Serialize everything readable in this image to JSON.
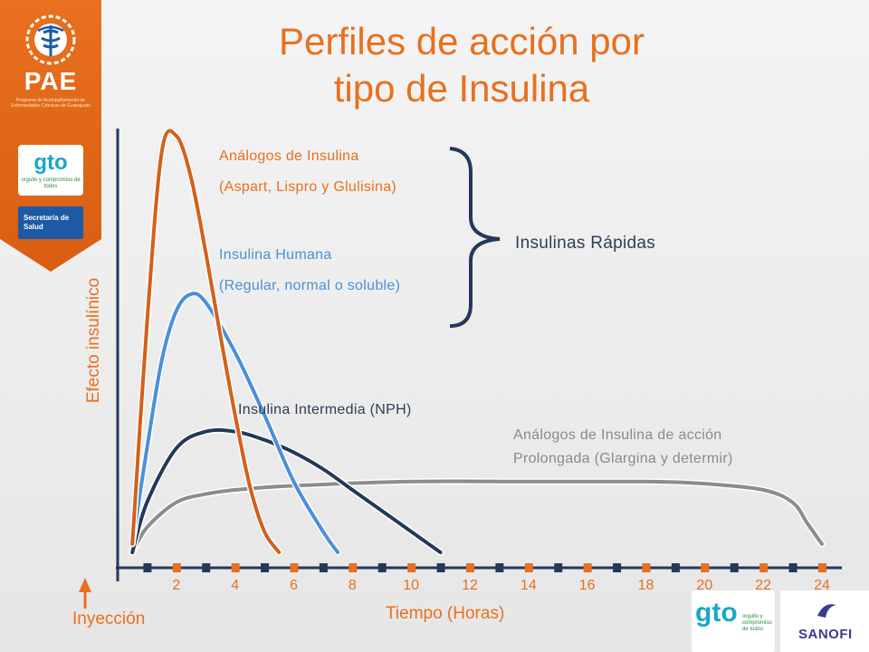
{
  "title": {
    "line1": "Perfiles de acción por",
    "line2": "tipo de Insulina"
  },
  "logos": {
    "pae": "PAE",
    "pae_subtitle": "Programa de Acompañamiento de Enfermedades Crónicas de Guanajuato",
    "gto": "gto",
    "gto_tagline": "orgullo y compromiso de todos",
    "secretaria": "Secretaría de Salud",
    "sanofi": "SANOFI"
  },
  "colors": {
    "accent": "#e8701e",
    "analogos": "#d4601a",
    "humana": "#4a90d9",
    "nph": "#24395a",
    "prolongada": "#8c8c8c",
    "bracket": "#24395a"
  },
  "chart_data": {
    "type": "line",
    "title": "Perfiles de acción por tipo de Insulina",
    "xlabel": "Tiempo (Horas)",
    "ylabel": "Efecto insulínico",
    "xlim": [
      0,
      24
    ],
    "x_ticks": [
      "2",
      "4",
      "6",
      "8",
      "10",
      "12",
      "14",
      "16",
      "18",
      "20",
      "22",
      "24"
    ],
    "y_scale": "qualitative, no ticks",
    "series": [
      {
        "name": "Análogos de Insulina (Aspart, Lispro y Glulisina)",
        "label_lines": [
          "Análogos de Insulina",
          "(Aspart, Lispro y Glulisina)"
        ],
        "color": "#d4601a",
        "x": [
          0.5,
          1,
          1.5,
          2,
          2.5,
          3,
          3.5,
          4,
          4.5,
          5,
          5.5
        ],
        "y": [
          2,
          55,
          96,
          100,
          90,
          72,
          52,
          33,
          16,
          5,
          0
        ]
      },
      {
        "name": "Insulina Humana (Regular, normal o soluble)",
        "label_lines": [
          "Insulina Humana",
          "(Regular, normal o soluble)"
        ],
        "color": "#4a90d9",
        "x": [
          0.5,
          1,
          1.5,
          2,
          2.5,
          3,
          4,
          5,
          6,
          7,
          7.5
        ],
        "y": [
          2,
          25,
          46,
          58,
          62,
          60,
          48,
          33,
          17,
          5,
          0
        ]
      },
      {
        "name": "Insulina Intermedia (NPH)",
        "label_lines": [
          "Insulina Intermedia (NPH)"
        ],
        "color": "#24395a",
        "x": [
          0.5,
          1,
          2,
          3,
          4,
          5,
          6,
          7,
          8,
          9,
          10,
          11
        ],
        "y": [
          0,
          12,
          25,
          29,
          29,
          27,
          24,
          20,
          15,
          10,
          5,
          0
        ]
      },
      {
        "name": "Análogos de Insulina de acción Prolongada (Glargina y determir)",
        "label_lines": [
          "Análogos de Insulina de acción",
          "Prolongada (Glargina y determir)"
        ],
        "color": "#8c8c8c",
        "x": [
          0.5,
          1,
          2,
          3,
          4,
          6,
          10,
          14,
          18,
          20,
          22,
          23,
          23.5,
          24
        ],
        "y": [
          0,
          6,
          12,
          14,
          15,
          16,
          17,
          17,
          17,
          16.5,
          15,
          12,
          7,
          2
        ]
      }
    ],
    "annotations": {
      "bracket_label": "Insulinas Rápidas",
      "injection_label": "Inyección"
    }
  }
}
